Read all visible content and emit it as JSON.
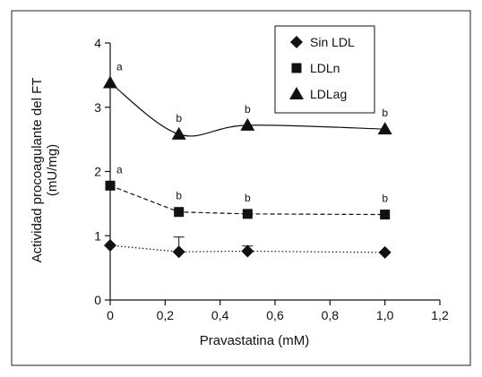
{
  "chart_data": {
    "type": "line",
    "xlabel": "Pravastatina (mM)",
    "ylabel_lines": [
      "Actividad procoagulante del FT",
      "(mU/mg)"
    ],
    "xlim": [
      0,
      1.2
    ],
    "ylim": [
      0,
      4
    ],
    "x_ticks": [
      0,
      0.2,
      0.4,
      0.6,
      0.8,
      1.0,
      1.2
    ],
    "x_tick_labels": [
      "0",
      "0,2",
      "0,4",
      "0,6",
      "0,8",
      "1,0",
      "1,2"
    ],
    "y_ticks": [
      0,
      1,
      2,
      3,
      4
    ],
    "y_tick_labels": [
      "0",
      "1",
      "2",
      "3",
      "4"
    ],
    "grid": false,
    "legend_position": "top-right",
    "series": [
      {
        "name": "Sin LDL",
        "marker": "diamond",
        "line_style": "dotted",
        "x": [
          0,
          0.25,
          0.5,
          1.0
        ],
        "y": [
          0.85,
          0.75,
          0.76,
          0.74
        ],
        "error": [
          0,
          0.23,
          0.08,
          0
        ],
        "labels": [
          "",
          "",
          "",
          ""
        ]
      },
      {
        "name": "LDLn",
        "marker": "square",
        "line_style": "dashed",
        "x": [
          0,
          0.25,
          0.5,
          1.0
        ],
        "y": [
          1.78,
          1.37,
          1.34,
          1.33
        ],
        "error": [
          0,
          0,
          0,
          0
        ],
        "labels": [
          "a",
          "b",
          "b",
          "b"
        ]
      },
      {
        "name": "LDLag",
        "marker": "triangle",
        "line_style": "solid",
        "x": [
          0,
          0.25,
          0.5,
          1.0
        ],
        "y": [
          3.38,
          2.58,
          2.72,
          2.66
        ],
        "error": [
          0,
          0,
          0,
          0
        ],
        "labels": [
          "a",
          "b",
          "b",
          "b"
        ]
      }
    ]
  }
}
